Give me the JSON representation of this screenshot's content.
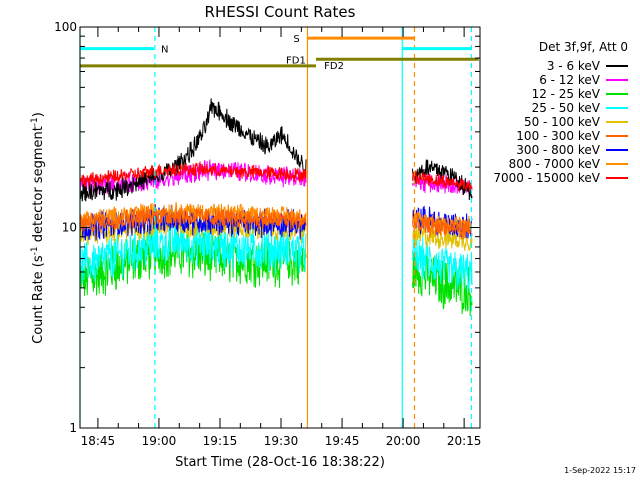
{
  "chart_data": {
    "type": "line",
    "title": "RHESSI Count Rates",
    "xlabel": "Start Time (28-Oct-16 18:38:22)",
    "ylabel_main": "Count Rate (s",
    "ylabel_sup1": "-1",
    "ylabel_mid": " detector segment",
    "ylabel_sup2": "-1",
    "ylabel_end": ")",
    "yscale": "log",
    "ylim": [
      1,
      100
    ],
    "yticks": [
      {
        "v": 1,
        "label": "1"
      },
      {
        "v": 10,
        "label": "10"
      },
      {
        "v": 100,
        "label": "100"
      }
    ],
    "xlim_min": [
      40.6,
      138.9
    ],
    "xticks": [
      {
        "v": 45,
        "label": "18:45"
      },
      {
        "v": 60,
        "label": "19:00"
      },
      {
        "v": 75,
        "label": "19:15"
      },
      {
        "v": 90,
        "label": "19:30"
      },
      {
        "v": 105,
        "label": "19:45"
      },
      {
        "v": 120,
        "label": "20:00"
      },
      {
        "v": 135,
        "label": "20:15"
      }
    ],
    "legend_header": "Det 3f,9f, Att 0",
    "legend_position": "top-right",
    "gaps_min": [
      [
        96.2,
        122.3
      ]
    ],
    "series": [
      {
        "name": "3 - 6 keV",
        "color": "#000000",
        "points": [
          [
            40.6,
            15
          ],
          [
            50,
            15.5
          ],
          [
            55,
            17
          ],
          [
            60,
            18
          ],
          [
            64,
            20
          ],
          [
            68,
            24
          ],
          [
            71,
            30
          ],
          [
            73,
            40
          ],
          [
            75,
            38
          ],
          [
            78,
            33
          ],
          [
            81,
            30
          ],
          [
            84,
            27
          ],
          [
            87,
            25
          ],
          [
            90,
            29
          ],
          [
            92,
            26
          ],
          [
            94,
            22
          ],
          [
            96,
            20
          ],
          [
            122.3,
            18
          ],
          [
            126,
            20
          ],
          [
            130,
            19
          ],
          [
            134,
            17
          ],
          [
            137,
            15
          ]
        ]
      },
      {
        "name": "6 - 12 keV",
        "color": "#ff00ff",
        "points": [
          [
            40.6,
            16
          ],
          [
            50,
            16.5
          ],
          [
            60,
            17
          ],
          [
            65,
            18
          ],
          [
            70,
            19
          ],
          [
            75,
            19.5
          ],
          [
            80,
            19
          ],
          [
            85,
            18.5
          ],
          [
            90,
            18
          ],
          [
            96,
            17.5
          ],
          [
            122.3,
            17
          ],
          [
            130,
            16.5
          ],
          [
            137,
            15.5
          ]
        ]
      },
      {
        "name": "12 - 25 keV",
        "color": "#00e000",
        "points": [
          [
            40.6,
            5.5
          ],
          [
            45,
            5.8
          ],
          [
            50,
            6.4
          ],
          [
            55,
            7
          ],
          [
            60,
            7.5
          ],
          [
            65,
            7.5
          ],
          [
            70,
            7.2
          ],
          [
            75,
            7
          ],
          [
            80,
            6.9
          ],
          [
            85,
            6.8
          ],
          [
            90,
            6.8
          ],
          [
            96,
            6.5
          ],
          [
            122.3,
            6.2
          ],
          [
            126,
            5.8
          ],
          [
            130,
            5.2
          ],
          [
            134,
            5
          ],
          [
            137,
            4.8
          ]
        ]
      },
      {
        "name": "25 - 50 keV",
        "color": "#00ffff",
        "points": [
          [
            40.6,
            6.5
          ],
          [
            45,
            6.8
          ],
          [
            50,
            7.3
          ],
          [
            55,
            7.8
          ],
          [
            60,
            8.3
          ],
          [
            65,
            8.6
          ],
          [
            70,
            8.3
          ],
          [
            75,
            8
          ],
          [
            80,
            7.9
          ],
          [
            85,
            7.8
          ],
          [
            90,
            7.8
          ],
          [
            96,
            7.6
          ],
          [
            122.3,
            7.2
          ],
          [
            126,
            6.8
          ],
          [
            130,
            6.3
          ],
          [
            134,
            6
          ],
          [
            137,
            5.8
          ]
        ]
      },
      {
        "name": "50 - 100 keV",
        "color": "#e0c000",
        "points": [
          [
            40.6,
            9.2
          ],
          [
            50,
            9.6
          ],
          [
            60,
            10.2
          ],
          [
            70,
            10.2
          ],
          [
            80,
            10
          ],
          [
            90,
            9.9
          ],
          [
            96,
            9.6
          ],
          [
            122.3,
            9.2
          ],
          [
            130,
            8.9
          ],
          [
            137,
            8.6
          ]
        ]
      },
      {
        "name": "100 - 300 keV",
        "color": "#ff6000",
        "points": [
          [
            40.6,
            10.5
          ],
          [
            50,
            10.9
          ],
          [
            60,
            11.5
          ],
          [
            70,
            11.3
          ],
          [
            80,
            11
          ],
          [
            90,
            10.9
          ],
          [
            96,
            10.7
          ],
          [
            122.3,
            10.3
          ],
          [
            130,
            10
          ],
          [
            137,
            9.7
          ]
        ]
      },
      {
        "name": "300 - 800 keV",
        "color": "#0000ff",
        "points": [
          [
            40.6,
            10
          ],
          [
            50,
            10.5
          ],
          [
            60,
            11
          ],
          [
            70,
            10.8
          ],
          [
            80,
            10.6
          ],
          [
            90,
            10.5
          ],
          [
            96,
            10.3
          ],
          [
            122.3,
            10.8
          ],
          [
            126,
            11
          ],
          [
            130,
            10.5
          ],
          [
            137,
            10
          ]
        ]
      },
      {
        "name": "800 - 7000 keV",
        "color": "#ff8c00",
        "points": [
          [
            40.6,
            11
          ],
          [
            50,
            11.5
          ],
          [
            60,
            12.2
          ],
          [
            70,
            12
          ],
          [
            80,
            11.7
          ],
          [
            90,
            11.6
          ],
          [
            96,
            11.4
          ],
          [
            122.3,
            11
          ],
          [
            130,
            10.6
          ],
          [
            137,
            10.3
          ]
        ]
      },
      {
        "name": "7000 - 15000 keV",
        "color": "#ff0000",
        "points": [
          [
            40.6,
            17
          ],
          [
            45,
            17.5
          ],
          [
            50,
            18
          ],
          [
            55,
            18.5
          ],
          [
            60,
            19.3
          ],
          [
            65,
            19.5
          ],
          [
            70,
            19.5
          ],
          [
            75,
            19.2
          ],
          [
            80,
            19
          ],
          [
            85,
            18.8
          ],
          [
            90,
            18.6
          ],
          [
            96,
            18.2
          ],
          [
            122.3,
            18
          ],
          [
            126,
            17.5
          ],
          [
            130,
            17
          ],
          [
            134,
            16.5
          ],
          [
            137,
            16
          ]
        ]
      }
    ],
    "vertical_lines": [
      {
        "t": 40.6,
        "color": "#00ffff",
        "style": "solid"
      },
      {
        "t": 59.0,
        "color": "#00ffff",
        "style": "dashed"
      },
      {
        "t": 96.5,
        "color": "#ff8c00",
        "style": "solid"
      },
      {
        "t": 119.8,
        "color": "#00ffff",
        "style": "solid"
      },
      {
        "t": 122.8,
        "color": "#ff8c00",
        "style": "dashed"
      },
      {
        "t": 136.8,
        "color": "#00ffff",
        "style": "dashed"
      }
    ],
    "flag_bars": [
      {
        "label": "N",
        "y": 78,
        "t0": 40.6,
        "t1": 58.8,
        "color": "#00ffff",
        "label_t": 60.5,
        "label_pos": "right"
      },
      {
        "label": "",
        "y": 78,
        "t0": 119.8,
        "t1": 136.8,
        "color": "#00ffff",
        "label_t": 0,
        "label_pos": "none"
      },
      {
        "label": "S",
        "y": 88,
        "t0": 96.5,
        "t1": 122.8,
        "color": "#ff8c00",
        "label_t": 94.6,
        "label_pos": "left"
      },
      {
        "label": "FD1",
        "y": 69,
        "t0": 98.6,
        "t1": 138.6,
        "color": "#808000",
        "label_t": 96.1,
        "label_pos": "left"
      },
      {
        "label": "FD2",
        "y": 64,
        "t0": 40.6,
        "t1": 98.6,
        "color": "#808000",
        "label_t": 100.6,
        "label_pos": "right-low"
      }
    ]
  },
  "timestamp": "1-Sep-2022 15:17"
}
